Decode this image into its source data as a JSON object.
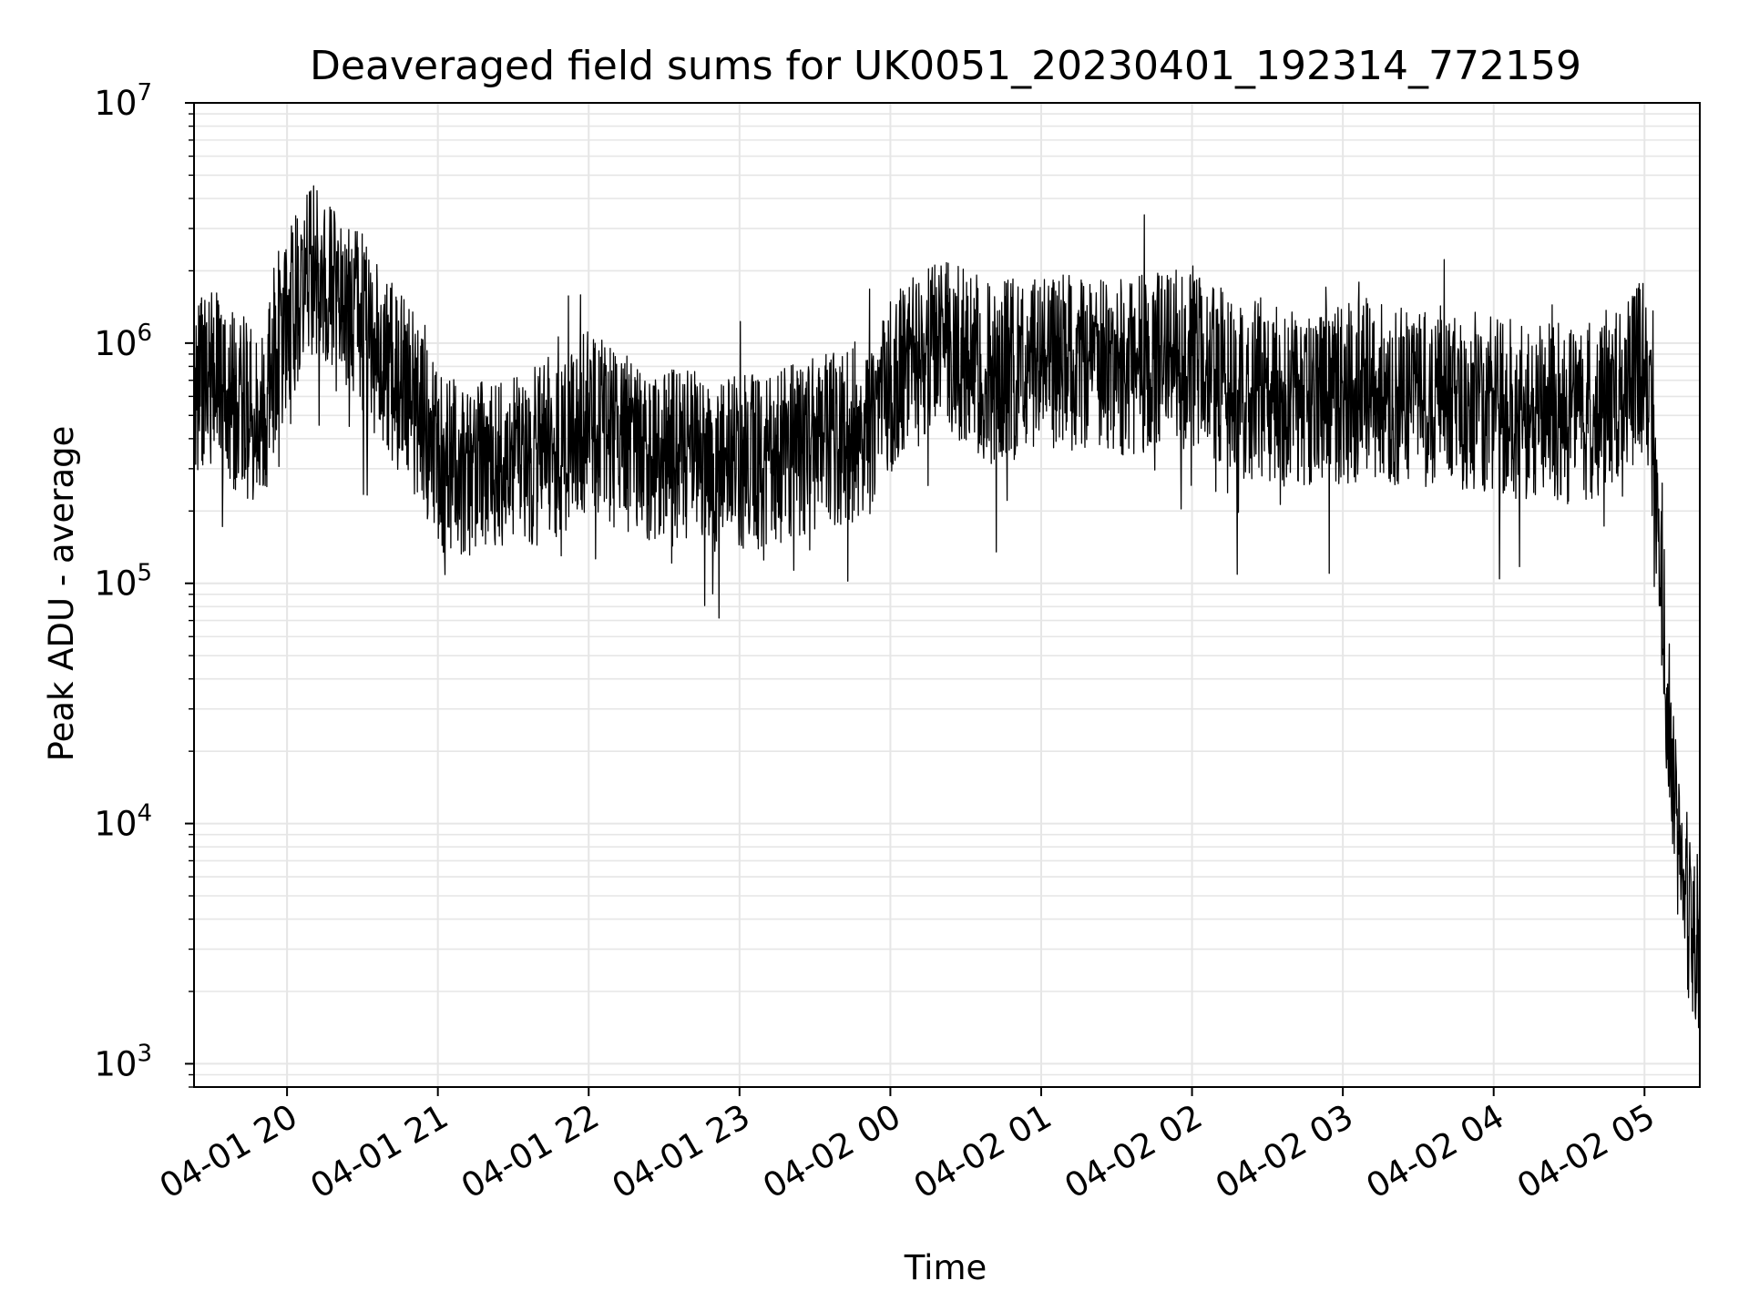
{
  "chart_data": {
    "type": "line",
    "title": "Deaveraged field sums for UK0051_20230401_192314_772159",
    "xlabel": "Time",
    "ylabel": "Peak ADU - average",
    "yscale": "log",
    "ylim": [
      800,
      10000000
    ],
    "xlim": [
      "2023-04-01 19:23",
      "2023-04-02 05:22"
    ],
    "grid": true,
    "line_color": "#000000",
    "x_ticks": [
      {
        "label": "04-01 20",
        "t": "2023-04-01 20:00"
      },
      {
        "label": "04-01 21",
        "t": "2023-04-01 21:00"
      },
      {
        "label": "04-01 22",
        "t": "2023-04-01 22:00"
      },
      {
        "label": "04-01 23",
        "t": "2023-04-01 23:00"
      },
      {
        "label": "04-02 00",
        "t": "2023-04-02 00:00"
      },
      {
        "label": "04-02 01",
        "t": "2023-04-02 01:00"
      },
      {
        "label": "04-02 02",
        "t": "2023-04-02 02:00"
      },
      {
        "label": "04-02 03",
        "t": "2023-04-02 03:00"
      },
      {
        "label": "04-02 04",
        "t": "2023-04-02 04:00"
      },
      {
        "label": "04-02 05",
        "t": "2023-04-02 05:00"
      }
    ],
    "y_ticks": [
      {
        "base": "10",
        "exp": "3",
        "value": 1000
      },
      {
        "base": "10",
        "exp": "4",
        "value": 10000
      },
      {
        "base": "10",
        "exp": "5",
        "value": 100000
      },
      {
        "base": "10",
        "exp": "6",
        "value": 1000000
      },
      {
        "base": "10",
        "exp": "7",
        "value": 10000000
      }
    ],
    "series": [
      {
        "x": [
          "2023-04-01 19:23",
          "2023-04-01 19:30",
          "2023-04-01 19:40",
          "2023-04-01 19:50",
          "2023-04-01 20:00",
          "2023-04-01 20:10",
          "2023-04-01 20:20",
          "2023-04-01 20:30",
          "2023-04-01 20:40",
          "2023-04-01 20:50",
          "2023-04-01 21:00",
          "2023-04-01 21:10",
          "2023-04-01 21:20",
          "2023-04-01 21:30",
          "2023-04-01 21:40",
          "2023-04-01 21:50",
          "2023-04-01 22:00",
          "2023-04-01 22:10",
          "2023-04-01 22:20",
          "2023-04-01 22:30",
          "2023-04-01 22:40",
          "2023-04-01 22:50",
          "2023-04-01 23:00",
          "2023-04-01 23:10",
          "2023-04-01 23:20",
          "2023-04-01 23:30",
          "2023-04-01 23:40",
          "2023-04-01 23:50",
          "2023-04-02 00:00",
          "2023-04-02 00:10",
          "2023-04-02 00:20",
          "2023-04-02 00:30",
          "2023-04-02 00:40",
          "2023-04-02 00:50",
          "2023-04-02 01:00",
          "2023-04-02 01:10",
          "2023-04-02 01:20",
          "2023-04-02 01:30",
          "2023-04-02 01:40",
          "2023-04-02 01:50",
          "2023-04-02 02:00",
          "2023-04-02 02:10",
          "2023-04-02 02:20",
          "2023-04-02 02:30",
          "2023-04-02 02:40",
          "2023-04-02 02:50",
          "2023-04-02 03:00",
          "2023-04-02 03:10",
          "2023-04-02 03:20",
          "2023-04-02 03:30",
          "2023-04-02 03:40",
          "2023-04-02 03:50",
          "2023-04-02 04:00",
          "2023-04-02 04:10",
          "2023-04-02 04:20",
          "2023-04-02 04:30",
          "2023-04-02 04:40",
          "2023-04-02 04:50",
          "2023-04-02 05:00",
          "2023-04-02 05:03",
          "2023-04-02 05:06",
          "2023-04-02 05:09",
          "2023-04-02 05:12",
          "2023-04-02 05:15",
          "2023-04-02 05:18",
          "2023-04-02 05:22"
        ],
        "y": [
          800000,
          900000,
          700000,
          600000,
          1500000,
          2500000,
          1800000,
          1500000,
          1000000,
          700000,
          400000,
          350000,
          380000,
          400000,
          420000,
          450000,
          600000,
          500000,
          450000,
          420000,
          400000,
          380000,
          380000,
          400000,
          420000,
          450000,
          500000,
          550000,
          800000,
          1000000,
          1200000,
          1100000,
          900000,
          1000000,
          1000000,
          1100000,
          1000000,
          950000,
          1000000,
          1100000,
          1000000,
          900000,
          800000,
          750000,
          700000,
          700000,
          750000,
          800000,
          750000,
          700000,
          750000,
          700000,
          700000,
          650000,
          650000,
          600000,
          650000,
          750000,
          1000000,
          500000,
          200000,
          40000,
          15000,
          8000,
          5000,
          4000
        ]
      }
    ]
  }
}
